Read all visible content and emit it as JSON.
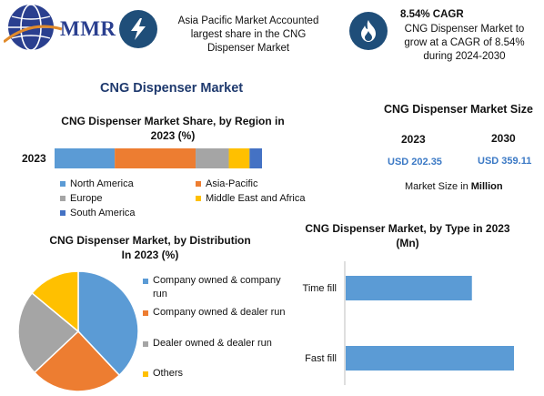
{
  "header": {
    "logo_text": "MMR",
    "info1": {
      "icon": "lightning-icon",
      "line1": "Asia Pacific Market Accounted",
      "line2": "largest share in the CNG",
      "line3": "Dispenser Market"
    },
    "info2": {
      "icon": "flame-icon",
      "title": "8.54% CAGR",
      "line1": "CNG Dispenser Market to",
      "line2": "grow at a CAGR of 8.54%",
      "line3": "during 2024-2030"
    }
  },
  "main_title": "CNG Dispenser Market",
  "market_size": {
    "title": "CNG Dispenser Market Size",
    "year1": "2023",
    "year2": "2030",
    "value1": "USD 202.35",
    "value2": "USD 359.11",
    "unit_prefix": "Market Size in ",
    "unit_bold": "Million"
  },
  "colors": {
    "blue": "#5b9bd5",
    "orange": "#ed7d31",
    "gray": "#a5a5a5",
    "yellow": "#ffc000",
    "darkblue": "#4472c4",
    "brand": "#1f4e79"
  },
  "chart_data": [
    {
      "type": "bar",
      "orientation": "horizontal-stacked",
      "title_line1": "CNG Dispenser Market Share, by Region in",
      "title_line2": "2023 (%)",
      "categories": [
        "2023"
      ],
      "series": [
        {
          "name": "North America",
          "values": [
            29
          ],
          "color": "#5b9bd5"
        },
        {
          "name": "Asia-Pacific",
          "values": [
            39
          ],
          "color": "#ed7d31"
        },
        {
          "name": "Europe",
          "values": [
            16
          ],
          "color": "#a5a5a5"
        },
        {
          "name": "Middle East and Africa",
          "values": [
            10
          ],
          "color": "#ffc000"
        },
        {
          "name": "South America",
          "values": [
            6
          ],
          "color": "#4472c4"
        }
      ]
    },
    {
      "type": "pie",
      "title_line1": "CNG Dispenser Market, by Distribution",
      "title_line2": "In 2023 (%)",
      "slices": [
        {
          "name_line1": "Company owned & company",
          "name_line2": "run",
          "value": 38,
          "color": "#5b9bd5"
        },
        {
          "name_line1": "Company owned & dealer run",
          "name_line2": "",
          "value": 25,
          "color": "#ed7d31"
        },
        {
          "name_line1": "Dealer owned & dealer run",
          "name_line2": "",
          "value": 23,
          "color": "#a5a5a5"
        },
        {
          "name_line1": "Others",
          "name_line2": "",
          "value": 14,
          "color": "#ffc000"
        }
      ]
    },
    {
      "type": "bar",
      "orientation": "horizontal",
      "title_line1": "CNG Dispenser Market, by Type in 2023",
      "title_line2": "(Mn)",
      "categories": [
        "Time fill",
        "Fast fill"
      ],
      "values": [
        75,
        100
      ],
      "color": "#5b9bd5"
    }
  ]
}
